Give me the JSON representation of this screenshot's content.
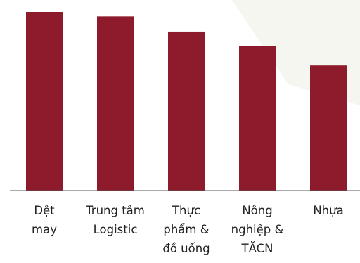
{
  "chart_data": {
    "type": "bar",
    "categories": [
      [
        "Dệt",
        "may"
      ],
      [
        "Trung tâm",
        "Logistic"
      ],
      [
        "Thực",
        "phẩm &",
        "đồ uống"
      ],
      [
        "Nông",
        "nghiệp &",
        "TĂCN"
      ],
      [
        "Nhựa"
      ]
    ],
    "values": [
      100,
      97.5,
      89,
      81,
      70
    ],
    "ylim": [
      0,
      100
    ],
    "colors": {
      "bar": "#8e1b2c",
      "background_accent": "#f6f6f0"
    }
  }
}
